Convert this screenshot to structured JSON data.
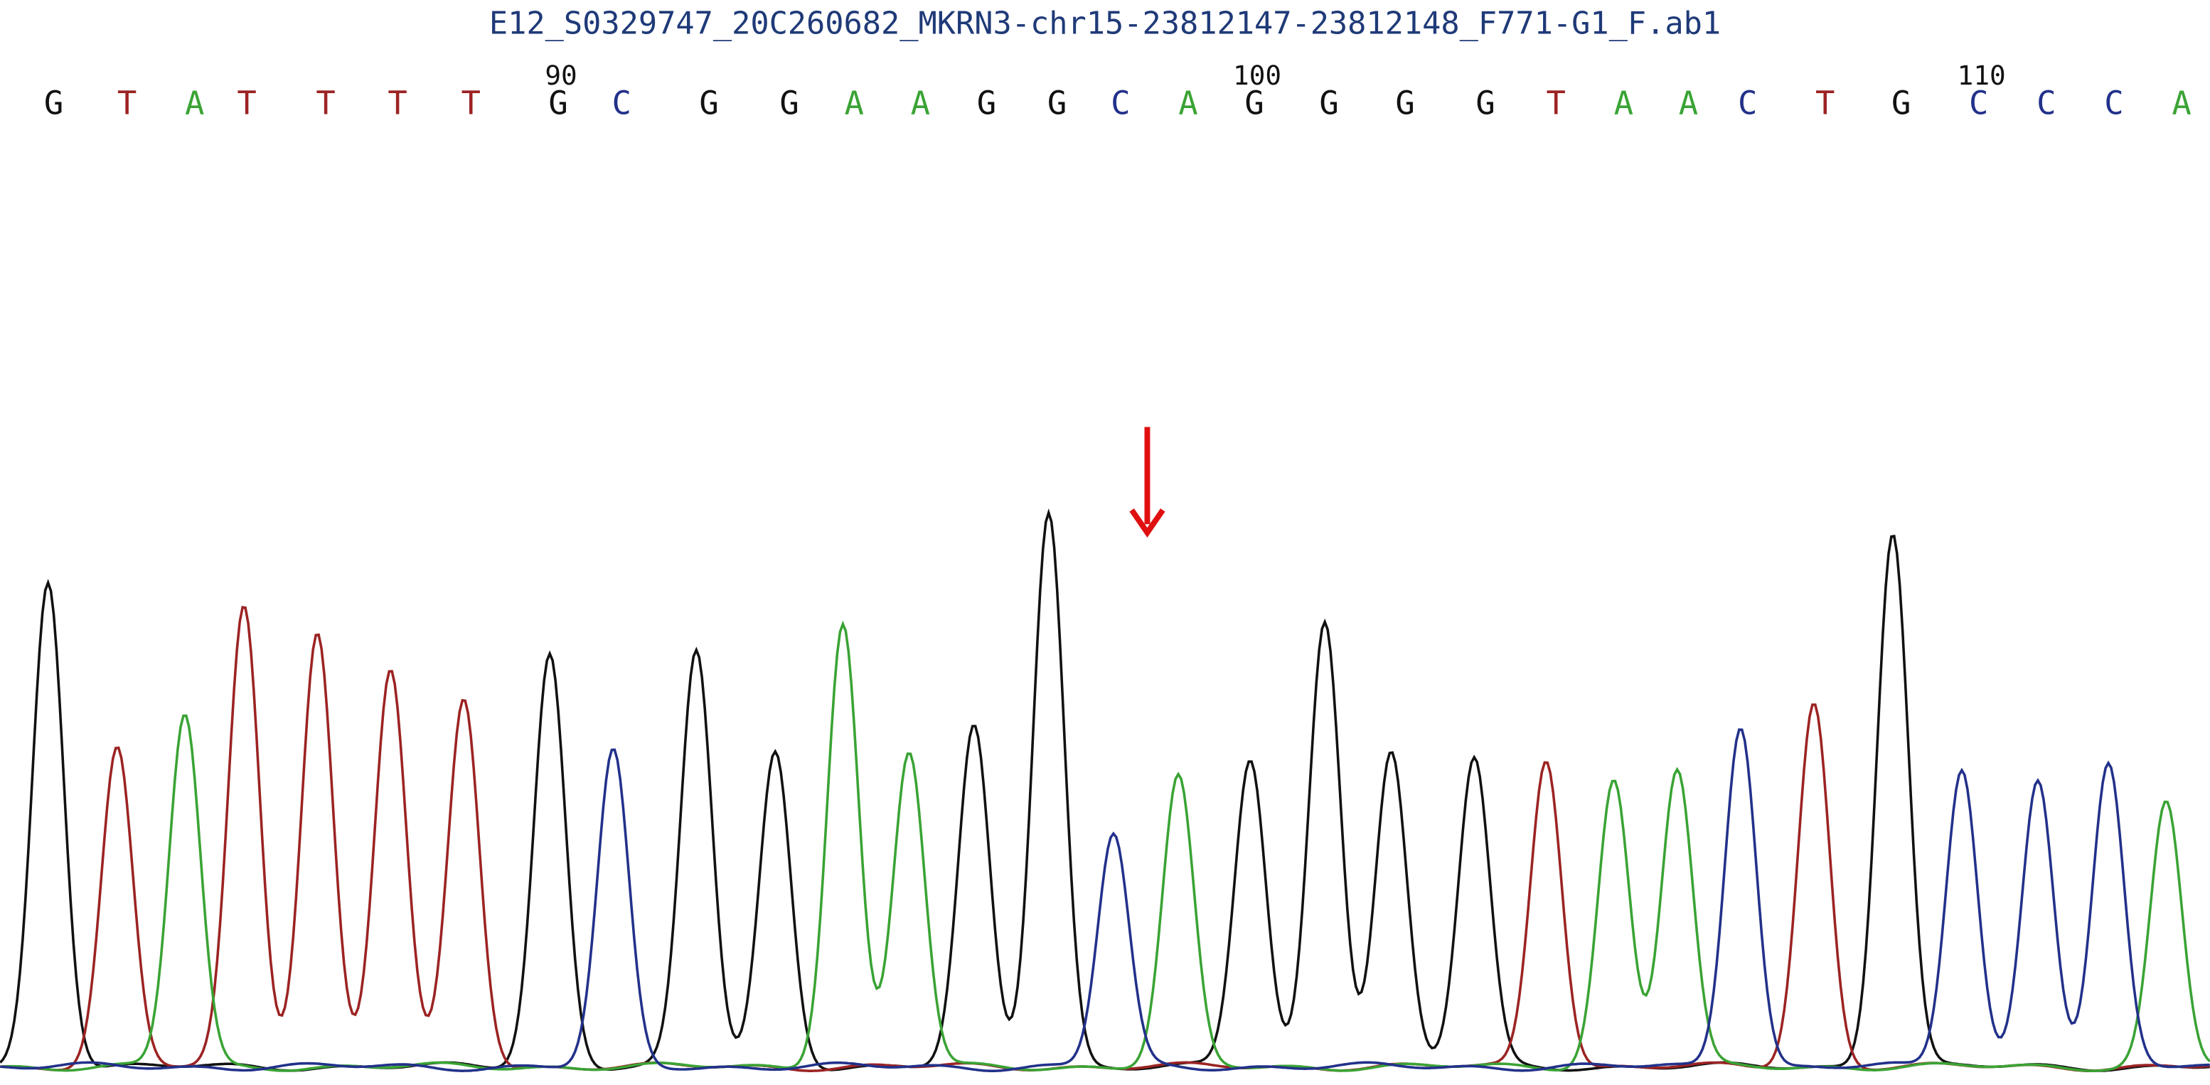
{
  "title": "E12_S0329747_20C260682_MKRN3-chr15-23812147-23812148_F771-G1_F.ab1",
  "sequence": [
    "G",
    "T",
    "A",
    "T",
    "T",
    "T",
    "T",
    "G",
    "C",
    "G",
    "G",
    "A",
    "A",
    "G",
    "G",
    "C",
    "A",
    "G",
    "G",
    "G",
    "G",
    "T",
    "A",
    "A",
    "C",
    "T",
    "G",
    "C",
    "C",
    "C",
    "A"
  ],
  "position_labels": [
    90,
    100,
    110
  ],
  "base_colors": {
    "G": "#111111",
    "T": "#9c2323",
    "A": "#3aa334",
    "C": "#22318a"
  }
}
